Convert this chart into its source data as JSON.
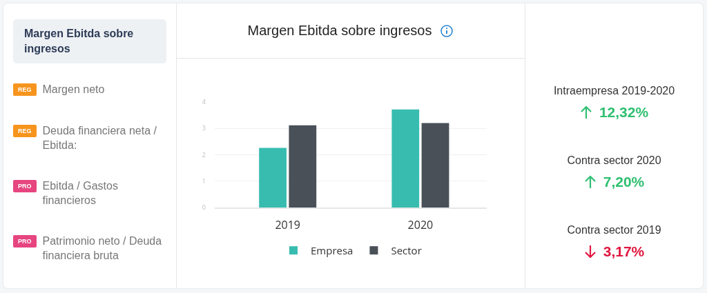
{
  "chart_data": [
    {
      "type": "other",
      "annotations": [
        "Margen Ebitda sobre ingresos",
        "REG",
        "Margen neto",
        "REG",
        "Deuda financiera neta / Ebitda:",
        "PRO",
        "Ebitda / Gastos financieros",
        "PRO",
        "Patrimonio neto / Deuda financiera bruta"
      ]
    },
    {
      "type": "bar",
      "title": "Margen Ebitda sobre ingresos",
      "categories": [
        "2019",
        "2020"
      ],
      "series": [
        {
          "name": "Empresa",
          "color": "#38bcb0",
          "values": [
            2.26,
            3.72
          ]
        },
        {
          "name": "Sector",
          "color": "#4a5058",
          "values": [
            3.12,
            3.2
          ]
        }
      ],
      "ylim": [
        0,
        4
      ],
      "yticks": [
        0,
        1,
        2,
        3,
        4
      ],
      "grid": "y",
      "legend": "bottom"
    },
    {
      "type": "other",
      "annotations": [
        "Intraempresa 2019-2020",
        "12,32%",
        "Contra sector 2020",
        "7,20%",
        "Contra sector 2019",
        "3,17%"
      ]
    }
  ]
}
